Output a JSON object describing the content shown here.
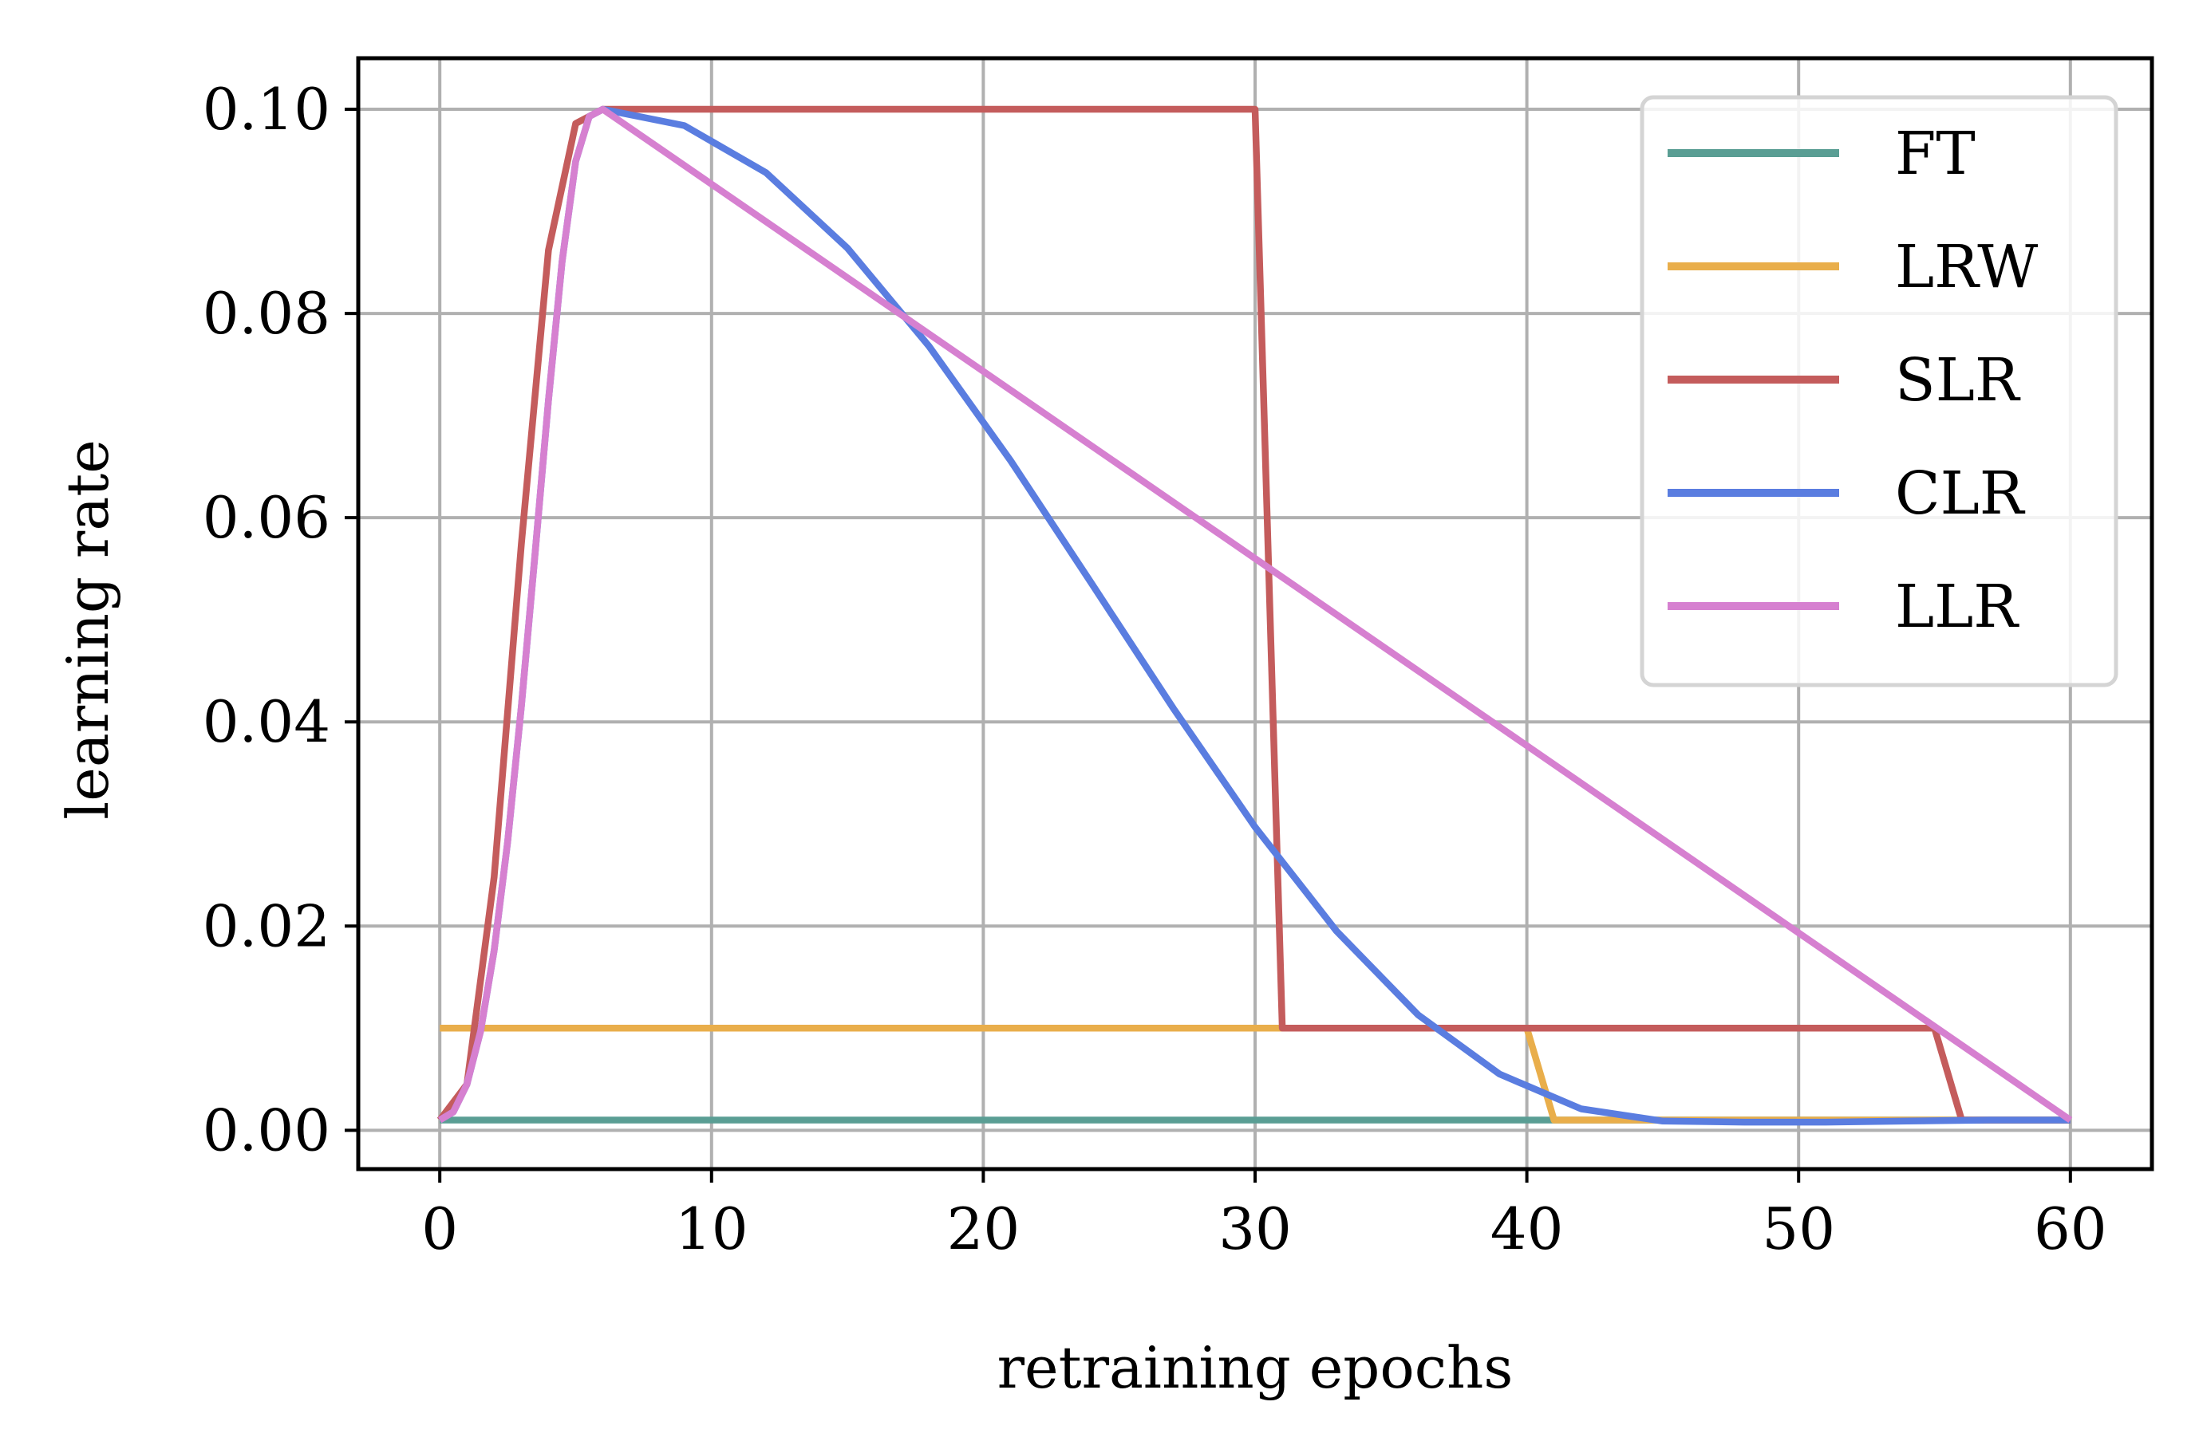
{
  "chart_data": {
    "type": "line",
    "xlabel": "retraining epochs",
    "ylabel": "learning rate",
    "xlim": [
      -3,
      63
    ],
    "ylim": [
      -0.0038,
      0.105
    ],
    "xticks": [
      0,
      10,
      20,
      30,
      40,
      50,
      60
    ],
    "xtick_labels": [
      "0",
      "10",
      "20",
      "30",
      "40",
      "50",
      "60"
    ],
    "yticks": [
      0.0,
      0.02,
      0.04,
      0.06,
      0.08,
      0.1
    ],
    "ytick_labels": [
      "0.00",
      "0.02",
      "0.04",
      "0.06",
      "0.08",
      "0.10"
    ],
    "grid": true,
    "legend_position": "upper right",
    "series": [
      {
        "name": "FT",
        "color": "#5a9e94",
        "x": [
          0,
          60
        ],
        "y": [
          0.001,
          0.001
        ]
      },
      {
        "name": "LRW",
        "color": "#e9ae4b",
        "x": [
          0,
          40,
          41,
          60
        ],
        "y": [
          0.01,
          0.01,
          0.001,
          0.001
        ]
      },
      {
        "name": "SLR",
        "color": "#c45c5c",
        "x": [
          0,
          1,
          2,
          3,
          4,
          5,
          6,
          30,
          31,
          55,
          56,
          60
        ],
        "y": [
          0.001,
          0.0045,
          0.0248,
          0.0574,
          0.0862,
          0.0986,
          0.1,
          0.1,
          0.01,
          0.01,
          0.001,
          0.001
        ]
      },
      {
        "name": "CLR",
        "color": "#5a7de0",
        "x": [
          0,
          0.5,
          1,
          1.5,
          2,
          2.5,
          3,
          3.5,
          4,
          4.5,
          5,
          5.5,
          6,
          9,
          12,
          15,
          18,
          21,
          24,
          27,
          30,
          33,
          36,
          39,
          42,
          45,
          48,
          51,
          54,
          57,
          60
        ],
        "y": [
          0.001,
          0.0018,
          0.0045,
          0.0097,
          0.0176,
          0.0283,
          0.0415,
          0.0563,
          0.0715,
          0.0851,
          0.0949,
          0.0993,
          0.1,
          0.0984,
          0.0938,
          0.0864,
          0.0768,
          0.0656,
          0.0535,
          0.0413,
          0.0297,
          0.0195,
          0.0113,
          0.0055,
          0.0021,
          0.0009,
          0.0008,
          0.0008,
          0.0009,
          0.001,
          0.001
        ]
      },
      {
        "name": "LLR",
        "color": "#d680d0",
        "x": [
          0,
          0.5,
          1,
          1.5,
          2,
          2.5,
          3,
          3.5,
          4,
          4.5,
          5,
          5.5,
          6,
          60
        ],
        "y": [
          0.001,
          0.0018,
          0.0045,
          0.0097,
          0.0176,
          0.0283,
          0.0415,
          0.0563,
          0.0715,
          0.0851,
          0.0949,
          0.0993,
          0.1,
          0.001
        ]
      }
    ]
  }
}
